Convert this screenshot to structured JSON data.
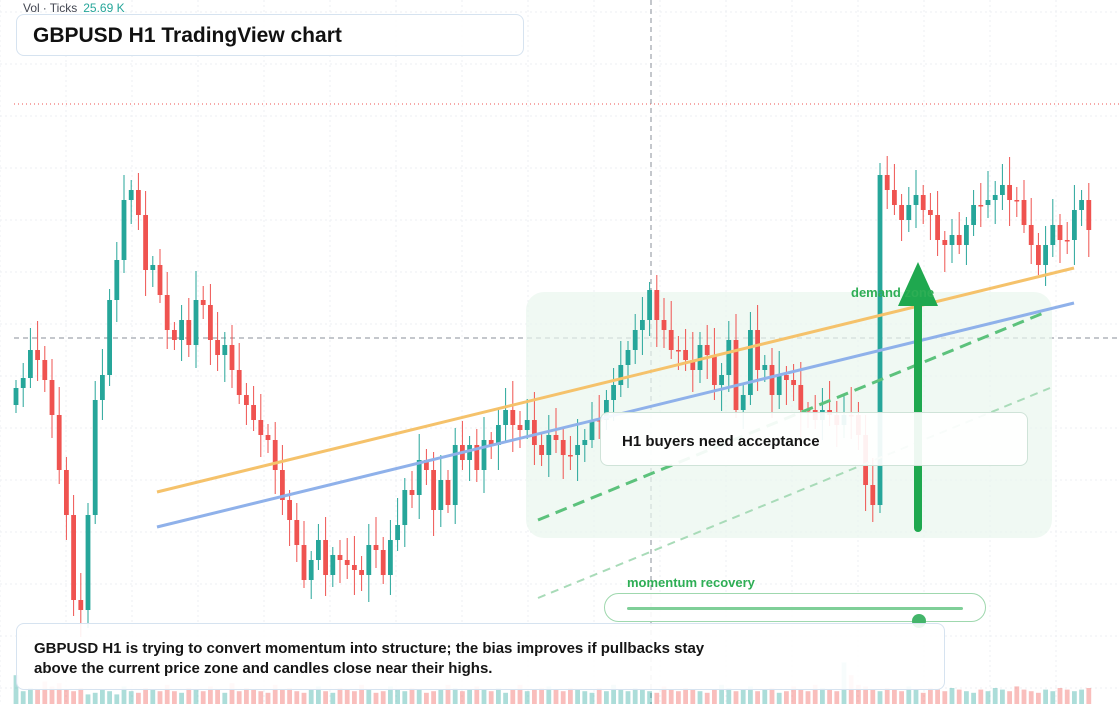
{
  "volume": {
    "label": "Vol",
    "separator": "·",
    "unit_label": "Ticks",
    "value": "25.69 K"
  },
  "title": "GBPUSD H1 TradingView chart",
  "callout": "H1 buyers need acceptance",
  "zone_label": "demand zone",
  "momentum": {
    "label": "momentum recovery",
    "level": 0.87
  },
  "summary": "GBPUSD H1 is trying to convert momentum into structure; the bias improves if pullbacks stay above the current price zone and candles close near their highs.",
  "colors": {
    "up": "#26a69a",
    "down": "#ef5350",
    "orange_trendline": "#f5c26b",
    "blue_trendline": "#8fb1ea",
    "green_accent": "#2eae55",
    "zone_fill": "#eaf7ee"
  },
  "chart_data": {
    "type": "candlestick",
    "symbol": "GBPUSD",
    "timeframe": "H1",
    "bars": 150,
    "closes": [
      388,
      378,
      350,
      360,
      380,
      415,
      470,
      515,
      600,
      610,
      515,
      400,
      375,
      300,
      260,
      200,
      190,
      215,
      270,
      265,
      295,
      330,
      340,
      320,
      345,
      300,
      305,
      340,
      355,
      345,
      370,
      395,
      405,
      420,
      435,
      440,
      470,
      500,
      520,
      545,
      580,
      560,
      540,
      575,
      555,
      560,
      565,
      570,
      575,
      545,
      550,
      575,
      540,
      525,
      490,
      495,
      460,
      470,
      510,
      480,
      505,
      445,
      460,
      445,
      470,
      440,
      445,
      425,
      410,
      425,
      430,
      420,
      445,
      455,
      435,
      440,
      455,
      455,
      445,
      440,
      420,
      420,
      400,
      385,
      365,
      350,
      330,
      320,
      290,
      320,
      330,
      350,
      350,
      360,
      370,
      345,
      355,
      385,
      375,
      340,
      410,
      395,
      330,
      370,
      365,
      395,
      375,
      380,
      385,
      410,
      410,
      420,
      410,
      415,
      425,
      415,
      415,
      435,
      485,
      505,
      175,
      190,
      205,
      220,
      205,
      195,
      210,
      215,
      240,
      245,
      235,
      245,
      225,
      205,
      205,
      200,
      195,
      185,
      200,
      200,
      225,
      245,
      265,
      245,
      225,
      240,
      240,
      210,
      200,
      230
    ],
    "opens": [
      405,
      388,
      378,
      350,
      360,
      380,
      415,
      470,
      515,
      600,
      610,
      515,
      400,
      375,
      300,
      260,
      200,
      190,
      215,
      270,
      265,
      295,
      330,
      340,
      320,
      345,
      300,
      305,
      340,
      355,
      345,
      370,
      395,
      405,
      420,
      435,
      440,
      470,
      500,
      520,
      545,
      580,
      560,
      540,
      575,
      555,
      560,
      565,
      570,
      575,
      545,
      550,
      575,
      540,
      525,
      490,
      495,
      460,
      470,
      510,
      480,
      505,
      445,
      460,
      445,
      470,
      440,
      445,
      425,
      410,
      425,
      430,
      420,
      445,
      455,
      435,
      440,
      455,
      455,
      445,
      440,
      420,
      420,
      400,
      385,
      365,
      350,
      330,
      320,
      290,
      320,
      330,
      350,
      350,
      360,
      370,
      345,
      355,
      385,
      375,
      340,
      410,
      395,
      330,
      370,
      365,
      395,
      375,
      380,
      385,
      410,
      410,
      420,
      410,
      415,
      425,
      415,
      415,
      435,
      485,
      505,
      175,
      190,
      205,
      220,
      205,
      195,
      210,
      215,
      240,
      245,
      235,
      245,
      225,
      205,
      205,
      200,
      195,
      185,
      200,
      200,
      225,
      245,
      265,
      245,
      225,
      240,
      240,
      210,
      200
    ],
    "volumes": [
      90,
      40,
      50,
      45,
      70,
      55,
      65,
      45,
      40,
      50,
      30,
      35,
      45,
      40,
      30,
      55,
      40,
      35,
      50,
      45,
      40,
      60,
      40,
      35,
      50,
      45,
      40,
      55,
      45,
      35,
      65,
      40,
      50,
      45,
      40,
      35,
      60,
      45,
      50,
      40,
      35,
      45,
      55,
      40,
      35,
      50,
      45,
      40,
      60,
      45,
      35,
      40,
      55,
      45,
      40,
      50,
      45,
      35,
      40,
      45,
      60,
      50,
      40,
      45,
      55,
      45,
      40,
      50,
      35,
      45,
      60,
      40,
      45,
      50,
      55,
      45,
      40,
      50,
      45,
      40,
      35,
      50,
      40,
      60,
      45,
      40,
      50,
      45,
      40,
      35,
      55,
      45,
      40,
      50,
      45,
      40,
      35,
      45,
      60,
      50,
      40,
      45,
      55,
      40,
      45,
      50,
      35,
      40,
      55,
      45,
      40,
      60,
      50,
      45,
      40,
      130,
      90,
      60,
      55,
      45,
      40,
      50,
      45,
      40,
      55,
      45,
      35,
      50,
      45,
      40,
      50,
      45,
      40,
      35,
      45,
      40,
      50,
      45,
      40,
      55,
      45,
      40,
      35,
      45,
      40,
      50,
      45,
      40,
      45,
      50
    ]
  }
}
